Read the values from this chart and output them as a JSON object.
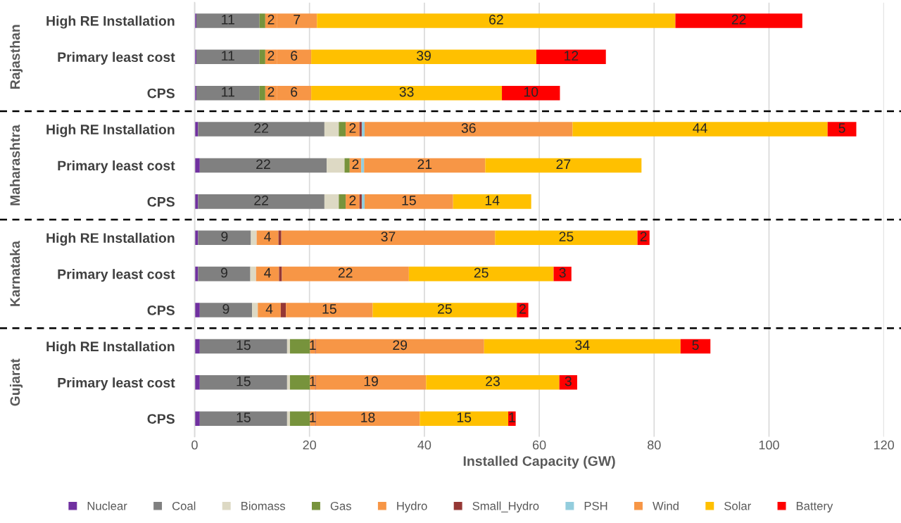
{
  "chart_data": {
    "type": "bar",
    "orientation": "horizontal",
    "stacked": true,
    "categories": [
      "High RE Installation",
      "Primary least cost",
      "CPS",
      "High RE Installation",
      "Primary least cost",
      "CPS",
      "High RE Installation",
      "Primary least cost",
      "CPS",
      "High RE Installation",
      "Primary least cost",
      "CPS"
    ],
    "series": [
      {
        "name": "Nuclear",
        "color": "#7030a0",
        "values": [
          0.3,
          0.3,
          0.3,
          0.6,
          0.9,
          0.6,
          0.6,
          0.6,
          0.9,
          0.9,
          0.9,
          0.9
        ]
      },
      {
        "name": "Coal",
        "color": "#808080",
        "values": [
          11.0,
          11.0,
          11.0,
          22.0,
          22.1,
          22.0,
          9.2,
          9.1,
          9.1,
          15.2,
          15.2,
          15.2
        ],
        "value_labels": [
          "11",
          "11",
          "11",
          "22",
          "22",
          "22",
          "9",
          "9",
          "9",
          "15",
          "15",
          "15"
        ]
      },
      {
        "name": "Biomass",
        "color": "#ddd9c4",
        "values": [
          null,
          null,
          null,
          2.5,
          3.1,
          2.5,
          1.0,
          1.0,
          1.0,
          0.5,
          0.5,
          0.5
        ]
      },
      {
        "name": "Gas",
        "color": "#77933c",
        "values": [
          1.0,
          1.0,
          1.0,
          1.2,
          0.9,
          1.2,
          null,
          null,
          null,
          3.5,
          3.5,
          3.5
        ]
      },
      {
        "name": "Hydro",
        "color": "#f79646",
        "values": [
          2.0,
          2.0,
          2.0,
          2.4,
          2.0,
          2.4,
          3.8,
          4.0,
          4.0,
          0.9,
          0.9,
          0.9
        ],
        "value_labels": [
          "2",
          "2",
          "2",
          "2",
          "2",
          "2",
          "4",
          "4",
          "4",
          "1",
          "1",
          "1"
        ]
      },
      {
        "name": "Small_Hydro",
        "color": "#953735",
        "values": [
          null,
          null,
          null,
          0.4,
          null,
          0.4,
          0.5,
          0.5,
          0.9,
          0.1,
          0.1,
          0.1
        ]
      },
      {
        "name": "PSH",
        "color": "#93cddd",
        "values": [
          null,
          null,
          null,
          0.5,
          0.5,
          0.5,
          null,
          null,
          null,
          null,
          null,
          null
        ]
      },
      {
        "name": "Wind",
        "color": "#f79646",
        "values": [
          7.0,
          6.0,
          6.0,
          36.2,
          21.1,
          15.4,
          37.2,
          22.1,
          15.1,
          29.3,
          19.2,
          18.1
        ],
        "value_labels": [
          "7",
          "6",
          "6",
          "36",
          "21",
          "15",
          "37",
          "22",
          "15",
          "29",
          "19",
          "18"
        ]
      },
      {
        "name": "Solar",
        "color": "#ffc000",
        "values": [
          62.4,
          39.2,
          33.2,
          44.4,
          27.2,
          13.6,
          24.8,
          25.2,
          25.1,
          34.2,
          23.2,
          15.4
        ],
        "value_labels": [
          "62",
          "39",
          "33",
          "44",
          "27",
          "14",
          "25",
          "25",
          "25",
          "34",
          "23",
          "15"
        ]
      },
      {
        "name": "Battery",
        "color": "#ff0000",
        "values": [
          22.1,
          12.1,
          10.1,
          5.0,
          null,
          null,
          2.1,
          3.1,
          2.0,
          5.2,
          3.1,
          1.3
        ],
        "value_labels": [
          "22",
          "12",
          "10",
          "5",
          null,
          null,
          "2",
          "3",
          "2",
          "5",
          "3",
          "1"
        ]
      }
    ],
    "xlabel": "Installed Capacity (GW)",
    "xlim": [
      0,
      120
    ],
    "xticks": [
      0,
      20,
      40,
      60,
      80,
      100,
      120
    ],
    "annotations": [
      "Rajasthan",
      "Maharashtra",
      "Karnataka",
      "Gujarat"
    ],
    "grid": "x",
    "legend": "bottom"
  }
}
